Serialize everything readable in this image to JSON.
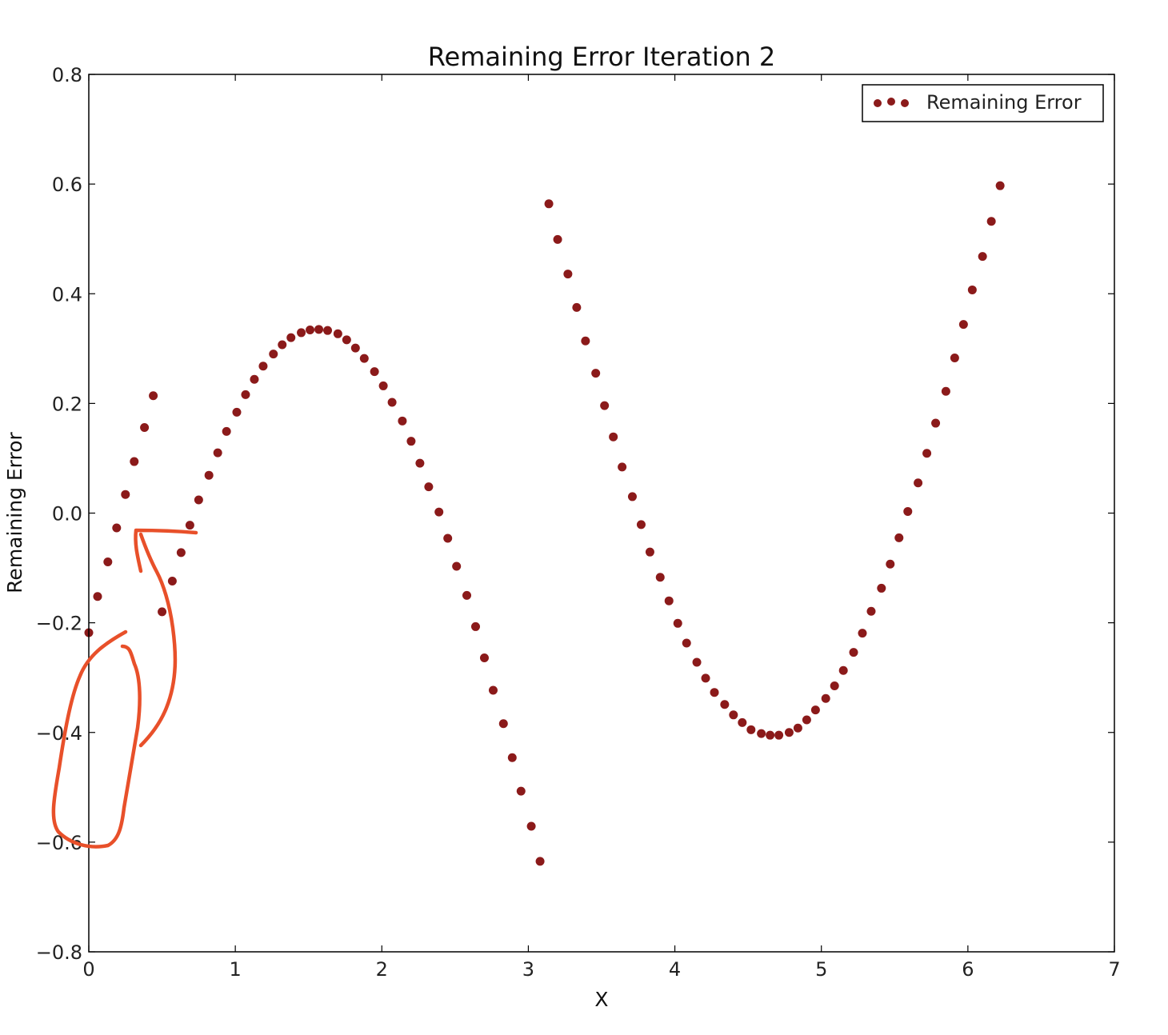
{
  "chart_data": {
    "type": "scatter",
    "title": "Remaining Error Iteration 2",
    "xlabel": "X",
    "ylabel": "Remaining Error",
    "xlim": [
      0,
      7
    ],
    "ylim": [
      -0.8,
      0.8
    ],
    "xticks": [
      "0",
      "1",
      "2",
      "3",
      "4",
      "5",
      "6",
      "7"
    ],
    "yticks": [
      "0.8",
      "0.6",
      "0.4",
      "0.2",
      "0.0",
      "−0.2",
      "−0.4",
      "−0.6",
      "−0.8"
    ],
    "legend": {
      "placement": "top-right",
      "label": "Remaining Error"
    },
    "grid": false,
    "marker_color": "#8b1a1a",
    "annotation_color": "#e8502a",
    "series": [
      {
        "name": "Remaining Error",
        "points": [
          [
            0.0,
            -0.218
          ],
          [
            0.06,
            -0.152
          ],
          [
            0.13,
            -0.089
          ],
          [
            0.19,
            -0.027
          ],
          [
            0.25,
            0.034
          ],
          [
            0.31,
            0.094
          ],
          [
            0.38,
            0.156
          ],
          [
            0.44,
            0.214
          ],
          [
            0.5,
            -0.18
          ],
          [
            0.57,
            -0.124
          ],
          [
            0.63,
            -0.072
          ],
          [
            0.69,
            -0.022
          ],
          [
            0.75,
            0.024
          ],
          [
            0.82,
            0.069
          ],
          [
            0.88,
            0.11
          ],
          [
            0.94,
            0.149
          ],
          [
            1.01,
            0.184
          ],
          [
            1.07,
            0.216
          ],
          [
            1.13,
            0.244
          ],
          [
            1.19,
            0.268
          ],
          [
            1.26,
            0.29
          ],
          [
            1.32,
            0.307
          ],
          [
            1.38,
            0.32
          ],
          [
            1.45,
            0.329
          ],
          [
            1.51,
            0.334
          ],
          [
            1.57,
            0.335
          ],
          [
            1.63,
            0.333
          ],
          [
            1.7,
            0.327
          ],
          [
            1.76,
            0.316
          ],
          [
            1.82,
            0.301
          ],
          [
            1.88,
            0.282
          ],
          [
            1.95,
            0.258
          ],
          [
            2.01,
            0.232
          ],
          [
            2.07,
            0.202
          ],
          [
            2.14,
            0.168
          ],
          [
            2.2,
            0.131
          ],
          [
            2.26,
            0.091
          ],
          [
            2.32,
            0.048
          ],
          [
            2.39,
            0.002
          ],
          [
            2.45,
            -0.046
          ],
          [
            2.51,
            -0.097
          ],
          [
            2.58,
            -0.15
          ],
          [
            2.64,
            -0.207
          ],
          [
            2.7,
            -0.264
          ],
          [
            2.76,
            -0.323
          ],
          [
            2.83,
            -0.384
          ],
          [
            2.89,
            -0.446
          ],
          [
            2.95,
            -0.507
          ],
          [
            3.02,
            -0.571
          ],
          [
            3.08,
            -0.635
          ],
          [
            3.14,
            0.564
          ],
          [
            3.2,
            0.499
          ],
          [
            3.27,
            0.436
          ],
          [
            3.33,
            0.375
          ],
          [
            3.39,
            0.314
          ],
          [
            3.46,
            0.255
          ],
          [
            3.52,
            0.196
          ],
          [
            3.58,
            0.139
          ],
          [
            3.64,
            0.084
          ],
          [
            3.71,
            0.03
          ],
          [
            3.77,
            -0.021
          ],
          [
            3.83,
            -0.071
          ],
          [
            3.9,
            -0.117
          ],
          [
            3.96,
            -0.16
          ],
          [
            4.02,
            -0.201
          ],
          [
            4.08,
            -0.237
          ],
          [
            4.15,
            -0.272
          ],
          [
            4.21,
            -0.301
          ],
          [
            4.27,
            -0.327
          ],
          [
            4.34,
            -0.349
          ],
          [
            4.4,
            -0.368
          ],
          [
            4.46,
            -0.382
          ],
          [
            4.52,
            -0.395
          ],
          [
            4.59,
            -0.402
          ],
          [
            4.65,
            -0.405
          ],
          [
            4.71,
            -0.405
          ],
          [
            4.78,
            -0.4
          ],
          [
            4.84,
            -0.392
          ],
          [
            4.9,
            -0.377
          ],
          [
            4.96,
            -0.359
          ],
          [
            5.03,
            -0.338
          ],
          [
            5.09,
            -0.315
          ],
          [
            5.15,
            -0.287
          ],
          [
            5.22,
            -0.254
          ],
          [
            5.28,
            -0.219
          ],
          [
            5.34,
            -0.179
          ],
          [
            5.41,
            -0.137
          ],
          [
            5.47,
            -0.093
          ],
          [
            5.53,
            -0.045
          ],
          [
            5.59,
            0.003
          ],
          [
            5.66,
            0.055
          ],
          [
            5.72,
            0.109
          ],
          [
            5.78,
            0.164
          ],
          [
            5.85,
            0.222
          ],
          [
            5.91,
            0.283
          ],
          [
            5.97,
            0.344
          ],
          [
            6.03,
            0.407
          ],
          [
            6.1,
            0.468
          ],
          [
            6.16,
            0.532
          ],
          [
            6.22,
            0.597
          ]
        ]
      }
    ]
  }
}
